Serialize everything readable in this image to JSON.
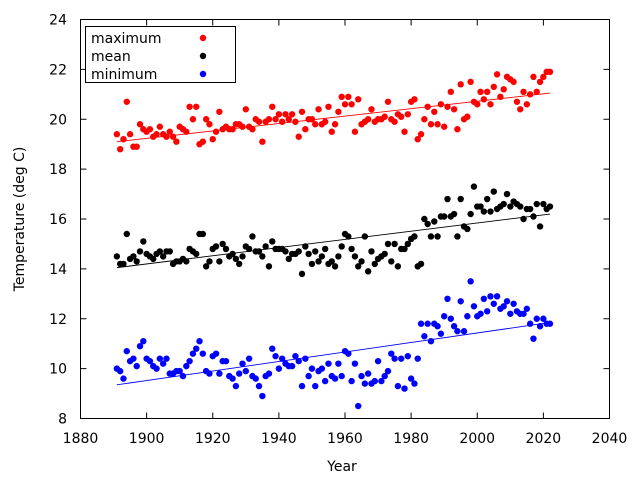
{
  "chart_data": {
    "type": "scatter",
    "xlabel": "Year",
    "ylabel": "Temperature (deg C)",
    "xlim": [
      1880,
      2040
    ],
    "ylim": [
      8,
      24
    ],
    "xticks": [
      1880,
      1900,
      1920,
      1940,
      1960,
      1980,
      2000,
      2020,
      2040
    ],
    "yticks": [
      8,
      10,
      12,
      14,
      16,
      18,
      20,
      22,
      24
    ],
    "grid": false,
    "legend": "top-left",
    "x": [
      1891,
      1892,
      1893,
      1894,
      1895,
      1896,
      1897,
      1898,
      1899,
      1900,
      1901,
      1902,
      1903,
      1904,
      1905,
      1906,
      1907,
      1908,
      1909,
      1910,
      1911,
      1912,
      1913,
      1914,
      1915,
      1916,
      1917,
      1918,
      1919,
      1920,
      1921,
      1922,
      1923,
      1924,
      1925,
      1926,
      1927,
      1928,
      1929,
      1930,
      1931,
      1932,
      1933,
      1934,
      1935,
      1936,
      1937,
      1938,
      1939,
      1940,
      1941,
      1942,
      1943,
      1944,
      1945,
      1946,
      1947,
      1948,
      1949,
      1950,
      1951,
      1952,
      1953,
      1954,
      1955,
      1956,
      1957,
      1958,
      1959,
      1960,
      1961,
      1962,
      1963,
      1964,
      1965,
      1966,
      1967,
      1968,
      1969,
      1970,
      1971,
      1972,
      1973,
      1974,
      1975,
      1976,
      1977,
      1978,
      1979,
      1980,
      1981,
      1982,
      1983,
      1984,
      1985,
      1986,
      1987,
      1988,
      1989,
      1990,
      1991,
      1992,
      1993,
      1994,
      1995,
      1996,
      1997,
      1998,
      1999,
      2000,
      2001,
      2002,
      2003,
      2004,
      2005,
      2006,
      2007,
      2008,
      2009,
      2010,
      2011,
      2012,
      2013,
      2014,
      2015,
      2016,
      2017,
      2018,
      2019,
      2020,
      2021,
      2022
    ],
    "series": [
      {
        "name": "maximum",
        "color": "#ff0000",
        "trend": [
          19.1,
          21.05
        ],
        "values": [
          19.4,
          18.8,
          19.2,
          20.7,
          19.4,
          18.9,
          18.9,
          19.8,
          19.6,
          19.5,
          19.6,
          19.3,
          19.4,
          19.7,
          19.4,
          19.3,
          19.5,
          19.3,
          19.1,
          19.7,
          19.6,
          19.5,
          20.5,
          20.0,
          20.5,
          19.0,
          19.1,
          20.0,
          19.8,
          19.2,
          19.5,
          20.3,
          19.6,
          19.7,
          19.6,
          19.6,
          19.8,
          19.8,
          19.7,
          20.4,
          19.7,
          19.6,
          20.0,
          19.9,
          19.1,
          19.9,
          20.0,
          20.5,
          20.0,
          20.2,
          19.9,
          20.2,
          20.0,
          20.2,
          19.9,
          19.3,
          20.3,
          19.6,
          20.0,
          20.0,
          19.8,
          20.4,
          19.8,
          19.9,
          20.5,
          19.5,
          19.8,
          20.3,
          20.9,
          20.6,
          20.9,
          20.6,
          19.5,
          20.8,
          19.8,
          19.9,
          20.0,
          20.4,
          19.9,
          20.0,
          20.0,
          20.1,
          20.7,
          20.0,
          19.9,
          20.2,
          20.1,
          19.5,
          20.2,
          20.7,
          20.8,
          19.2,
          19.4,
          20.0,
          20.5,
          19.8,
          20.3,
          19.8,
          20.6,
          19.7,
          20.5,
          21.1,
          20.4,
          19.6,
          21.4,
          20.0,
          20.1,
          21.5,
          20.7,
          20.6,
          21.1,
          20.8,
          21.1,
          20.6,
          21.3,
          21.8,
          20.9,
          21.2,
          21.7,
          21.6,
          21.5,
          20.7,
          20.4,
          21.1,
          20.6,
          21.0,
          21.7,
          21.1,
          21.5,
          21.7,
          21.9,
          21.9
        ]
      },
      {
        "name": "mean",
        "color": "#000000",
        "trend": [
          14.05,
          16.2
        ],
        "values": [
          14.5,
          14.2,
          14.2,
          15.4,
          14.4,
          14.5,
          14.3,
          14.7,
          15.1,
          14.6,
          14.5,
          14.4,
          14.6,
          14.7,
          14.5,
          14.7,
          14.7,
          14.2,
          14.3,
          14.3,
          14.4,
          14.3,
          14.8,
          14.7,
          14.6,
          15.4,
          15.4,
          14.1,
          14.3,
          14.8,
          14.9,
          14.3,
          15.0,
          14.8,
          14.5,
          14.6,
          14.4,
          14.2,
          14.5,
          14.9,
          14.8,
          15.3,
          14.7,
          14.7,
          14.5,
          14.9,
          14.1,
          15.1,
          14.8,
          14.8,
          14.8,
          14.7,
          14.4,
          14.6,
          14.6,
          14.7,
          13.8,
          14.9,
          14.6,
          14.2,
          14.7,
          14.3,
          14.5,
          14.8,
          14.2,
          14.3,
          14.1,
          14.5,
          14.9,
          15.4,
          15.3,
          14.8,
          14.5,
          14.1,
          14.3,
          15.3,
          13.9,
          14.7,
          14.2,
          14.4,
          14.5,
          14.6,
          15.0,
          14.3,
          15.0,
          14.1,
          14.8,
          14.8,
          15.0,
          15.2,
          15.3,
          14.1,
          14.2,
          16.0,
          15.8,
          15.3,
          15.9,
          15.3,
          16.1,
          16.1,
          16.8,
          16.1,
          16.2,
          15.3,
          16.8,
          15.7,
          15.6,
          16.2,
          17.3,
          16.5,
          16.5,
          16.3,
          16.8,
          16.3,
          17.1,
          16.4,
          16.5,
          16.6,
          17.0,
          16.5,
          16.7,
          16.6,
          16.5,
          16.0,
          16.4,
          16.4,
          16.1,
          16.6,
          15.7,
          16.6,
          16.4,
          16.5
        ]
      },
      {
        "name": "minimum",
        "color": "#0000ff",
        "trend": [
          9.35,
          11.85
        ],
        "values": [
          10.0,
          9.9,
          9.6,
          10.7,
          10.3,
          10.4,
          10.1,
          10.9,
          11.1,
          10.4,
          10.3,
          10.1,
          10.0,
          10.4,
          10.2,
          10.4,
          9.8,
          9.8,
          9.9,
          9.9,
          9.7,
          10.1,
          10.3,
          10.6,
          10.8,
          11.1,
          10.6,
          9.9,
          9.8,
          10.5,
          10.6,
          9.8,
          10.3,
          10.3,
          9.7,
          9.6,
          9.3,
          9.8,
          10.2,
          9.9,
          10.4,
          9.7,
          9.6,
          9.3,
          8.9,
          9.7,
          9.8,
          10.8,
          10.5,
          10.0,
          10.4,
          10.2,
          10.1,
          10.1,
          10.5,
          10.3,
          9.3,
          10.4,
          9.7,
          10.0,
          9.3,
          9.9,
          10.0,
          9.5,
          10.2,
          9.7,
          9.6,
          10.2,
          9.7,
          10.7,
          10.6,
          9.5,
          10.2,
          8.5,
          9.7,
          9.4,
          9.8,
          9.4,
          9.5,
          10.3,
          9.5,
          9.7,
          9.9,
          10.6,
          10.4,
          9.3,
          10.4,
          9.2,
          10.5,
          9.6,
          9.4,
          10.4,
          11.8,
          11.3,
          11.8,
          11.1,
          11.8,
          11.7,
          11.4,
          12.1,
          12.8,
          12.0,
          11.7,
          11.5,
          12.7,
          11.5,
          12.1,
          13.5,
          12.5,
          12.1,
          12.2,
          12.8,
          12.3,
          12.9,
          12.6,
          12.9,
          12.4,
          12.5,
          12.7,
          12.2,
          12.6,
          12.3,
          12.2,
          12.2,
          12.4,
          11.8,
          11.2,
          12.0,
          11.7,
          12.0,
          11.8,
          11.8
        ]
      }
    ]
  }
}
